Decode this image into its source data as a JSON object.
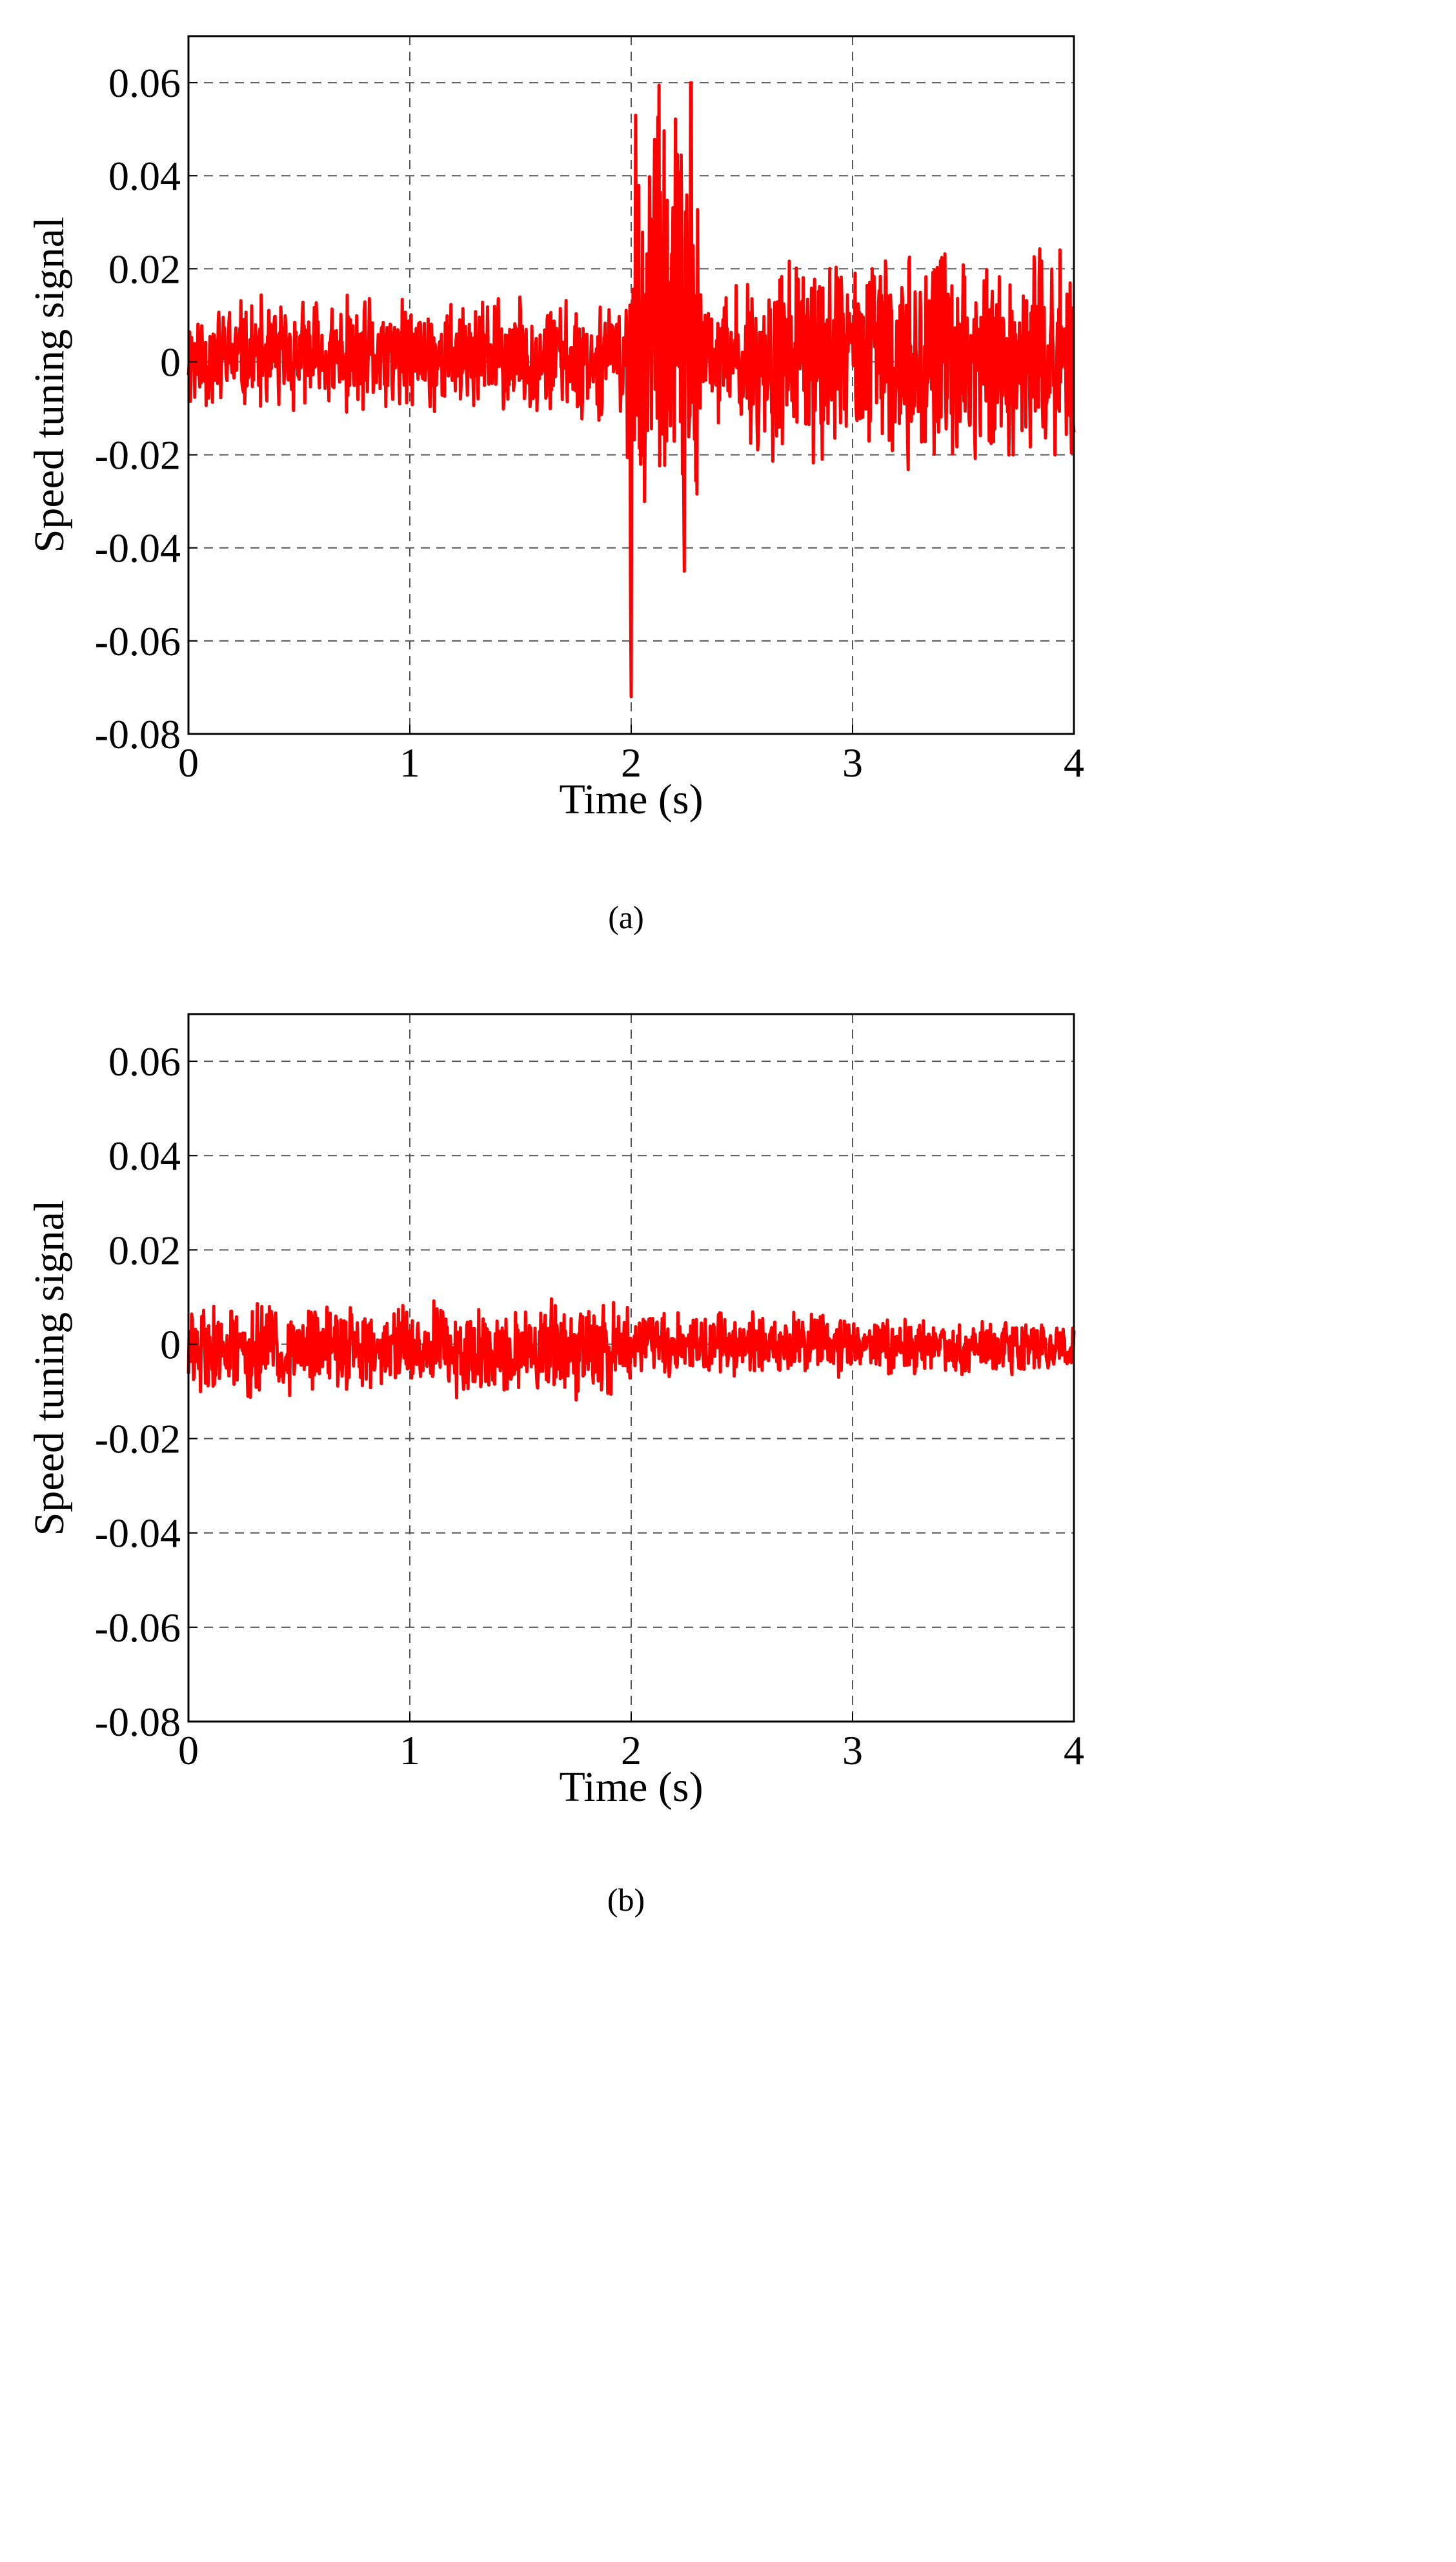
{
  "chart_data": [
    {
      "type": "line",
      "caption": "(a)",
      "xlabel": "Time (s)",
      "ylabel": "Speed tuning signal",
      "xlim": [
        0,
        4
      ],
      "ylim": [
        -0.08,
        0.07
      ],
      "xticks": [
        0,
        1,
        2,
        3,
        4
      ],
      "yticks": [
        -0.08,
        -0.06,
        -0.04,
        -0.02,
        0,
        0.02,
        0.04,
        0.06
      ],
      "tick_labels_x": [
        "0",
        "1",
        "2",
        "3",
        "4"
      ],
      "tick_labels_y": [
        "-0.08",
        "-0.06",
        "-0.04",
        "-0.02",
        "0",
        "0.02",
        "0.04",
        "0.06"
      ],
      "grid": true,
      "series": [
        {
          "color": "#ff0000",
          "segments": [
            {
              "t_start": 0.0,
              "t_end": 1.98,
              "min": -0.013,
              "max": 0.015
            },
            {
              "t_start": 1.98,
              "t_end": 2.02,
              "min": -0.072,
              "max": 0.053
            },
            {
              "t_start": 2.02,
              "t_end": 2.3,
              "min": -0.045,
              "max": 0.06
            },
            {
              "t_start": 2.3,
              "t_end": 2.5,
              "min": -0.018,
              "max": 0.018
            },
            {
              "t_start": 2.5,
              "t_end": 2.6,
              "min": -0.023,
              "max": 0.023
            },
            {
              "t_start": 2.6,
              "t_end": 4.0,
              "min": -0.024,
              "max": 0.026
            }
          ],
          "peaks": [
            {
              "t": 2.0,
              "value": -0.072
            },
            {
              "t": 2.02,
              "value": 0.053
            },
            {
              "t": 2.27,
              "value": 0.06
            },
            {
              "t": 2.24,
              "value": -0.045
            }
          ]
        }
      ]
    },
    {
      "type": "line",
      "caption": "(b)",
      "xlabel": "Time (s)",
      "ylabel": "Speed tuning signal",
      "xlim": [
        0,
        4
      ],
      "ylim": [
        -0.08,
        0.07
      ],
      "xticks": [
        0,
        1,
        2,
        3,
        4
      ],
      "yticks": [
        -0.08,
        -0.06,
        -0.04,
        -0.02,
        0,
        0.02,
        0.04,
        0.06
      ],
      "tick_labels_x": [
        "0",
        "1",
        "2",
        "3",
        "4"
      ],
      "tick_labels_y": [
        "-0.08",
        "-0.06",
        "-0.04",
        "-0.02",
        "0",
        "0.02",
        "0.04",
        "0.06"
      ],
      "grid": true,
      "series": [
        {
          "color": "#ff0000",
          "segments": [
            {
              "t_start": 0.0,
              "t_end": 2.0,
              "min": -0.012,
              "max": 0.01
            },
            {
              "t_start": 2.0,
              "t_end": 3.0,
              "min": -0.008,
              "max": 0.008
            },
            {
              "t_start": 3.0,
              "t_end": 4.0,
              "min": -0.007,
              "max": 0.006
            }
          ],
          "peaks": []
        }
      ]
    }
  ]
}
